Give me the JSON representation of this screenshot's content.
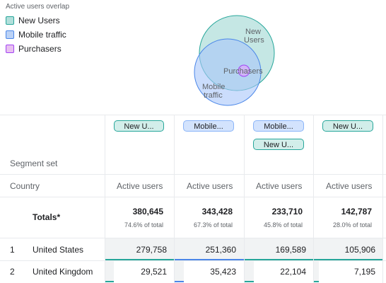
{
  "legend": {
    "title": "Active users overlap",
    "items": [
      {
        "label": "New Users",
        "fill": "#b2dfdb",
        "border": "#26a69a"
      },
      {
        "label": "Mobile traffic",
        "fill": "#bbd2f6",
        "border": "#4a86e8"
      },
      {
        "label": "Purchasers",
        "fill": "#e8c0f0",
        "border": "#a142f4"
      }
    ]
  },
  "venn": {
    "labels": {
      "new_users_1": "New",
      "new_users_2": "Users",
      "purchasers": "Purchasers",
      "mobile_1": "Mobile",
      "mobile_2": "traffic"
    }
  },
  "table": {
    "segment_set_label": "Segment set",
    "dimension_label": "Country",
    "metric_label": "Active users",
    "totals_label": "Totals*",
    "columns": [
      {
        "chips": [
          {
            "label": "New U...",
            "color": "teal"
          }
        ],
        "total": "380,645",
        "pct": "74.6% of total",
        "underline": "#26a69a"
      },
      {
        "chips": [
          {
            "label": "Mobile...",
            "color": "blue"
          }
        ],
        "total": "343,428",
        "pct": "67.3% of total",
        "underline": "#4a86e8"
      },
      {
        "chips": [
          {
            "label": "Mobile...",
            "color": "blue"
          },
          {
            "label": "New U...",
            "color": "teal"
          }
        ],
        "total": "233,710",
        "pct": "45.8% of total",
        "underline": "#26a69a"
      },
      {
        "chips": [
          {
            "label": "New U...",
            "color": "teal"
          }
        ],
        "total": "142,787",
        "pct": "28.0% of total",
        "underline": "#26a69a"
      }
    ],
    "rows": [
      {
        "rank": "1",
        "country": "United States",
        "values": [
          "279,758",
          "251,360",
          "169,589",
          "105,906"
        ]
      },
      {
        "rank": "2",
        "country": "United Kingdom",
        "values": [
          "29,521",
          "35,423",
          "22,104",
          "7,195"
        ]
      }
    ]
  }
}
